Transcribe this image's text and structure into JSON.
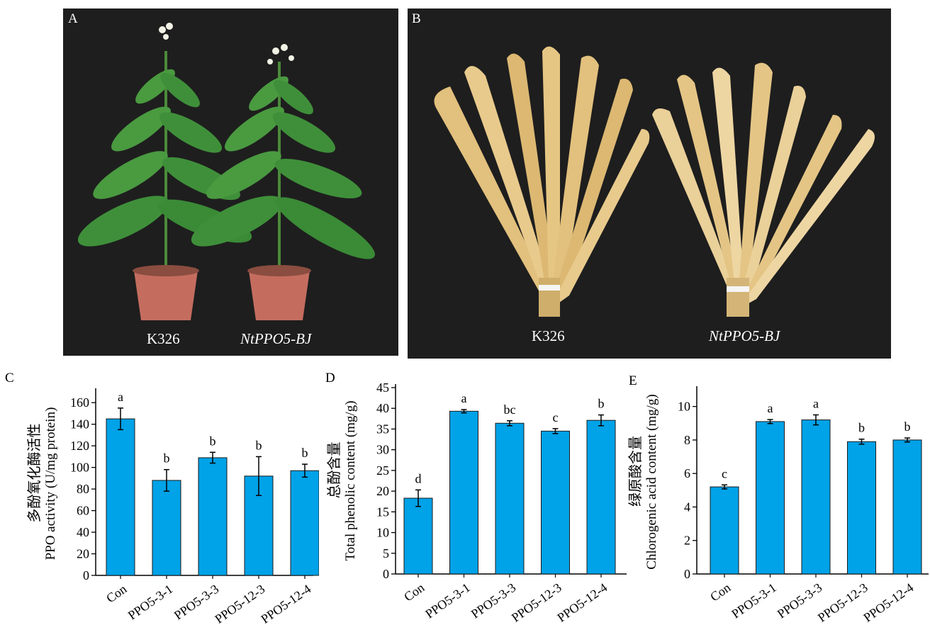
{
  "panels": {
    "a": {
      "letter": "A",
      "labels": [
        "K326",
        "NtPPO5-BJ"
      ]
    },
    "b": {
      "letter": "B",
      "labels": [
        "K326",
        "NtPPO5-BJ"
      ]
    },
    "c": {
      "letter": "C"
    },
    "d": {
      "letter": "D"
    },
    "e": {
      "letter": "E"
    }
  },
  "colors": {
    "bar_fill": "#00a2e8",
    "bar_stroke": "#1a1a1a",
    "photo_bg": "#1e1e1e",
    "leaf_green": "#3f8f3a",
    "pot_red": "#c46d5f",
    "dry_leaf": "#e4c585"
  },
  "chart_data": [
    {
      "type": "bar",
      "categories": [
        "Con",
        "PPO5-3-1",
        "PPO5-3-3",
        "PPO5-12-3",
        "PPO5-12-4"
      ],
      "values": [
        145,
        88,
        109,
        92,
        97
      ],
      "errors": [
        10,
        10,
        5,
        18,
        6
      ],
      "letters": [
        "a",
        "b",
        "b",
        "b",
        "b"
      ],
      "ylabel_cn": "多酚氧化酶活性",
      "ylabel": "PPO activity (U/mg protein)",
      "ylim": [
        0,
        170
      ],
      "yticks": [
        0,
        20,
        40,
        60,
        80,
        100,
        120,
        140,
        160
      ]
    },
    {
      "type": "bar",
      "categories": [
        "Con",
        "PPO5-3-1",
        "PPO5-3-3",
        "PPO5-12-3",
        "PPO5-12-4"
      ],
      "values": [
        18.3,
        39.3,
        36.4,
        34.5,
        37.1
      ],
      "errors": [
        2.0,
        0.4,
        0.6,
        0.6,
        1.3
      ],
      "letters": [
        "d",
        "a",
        "bc",
        "c",
        "b"
      ],
      "ylabel_cn": "总酚含量",
      "ylabel": "Total phenolic content (mg/g)",
      "ylim": [
        0,
        45
      ],
      "yticks": [
        0,
        5,
        10,
        15,
        20,
        25,
        30,
        35,
        40,
        45
      ]
    },
    {
      "type": "bar",
      "categories": [
        "Con",
        "PPO5-3-1",
        "PPO5-3-3",
        "PPO5-12-3",
        "PPO5-12-4"
      ],
      "values": [
        5.2,
        9.1,
        9.2,
        7.9,
        8.0
      ],
      "errors": [
        0.12,
        0.12,
        0.3,
        0.15,
        0.12
      ],
      "letters": [
        "c",
        "a",
        "a",
        "b",
        "b"
      ],
      "ylabel_cn": "绿原酸含量",
      "ylabel": "Chlorogenic acid content (mg/g)",
      "ylim": [
        0,
        11
      ],
      "yticks": [
        0,
        2,
        4,
        6,
        8,
        10
      ]
    }
  ]
}
